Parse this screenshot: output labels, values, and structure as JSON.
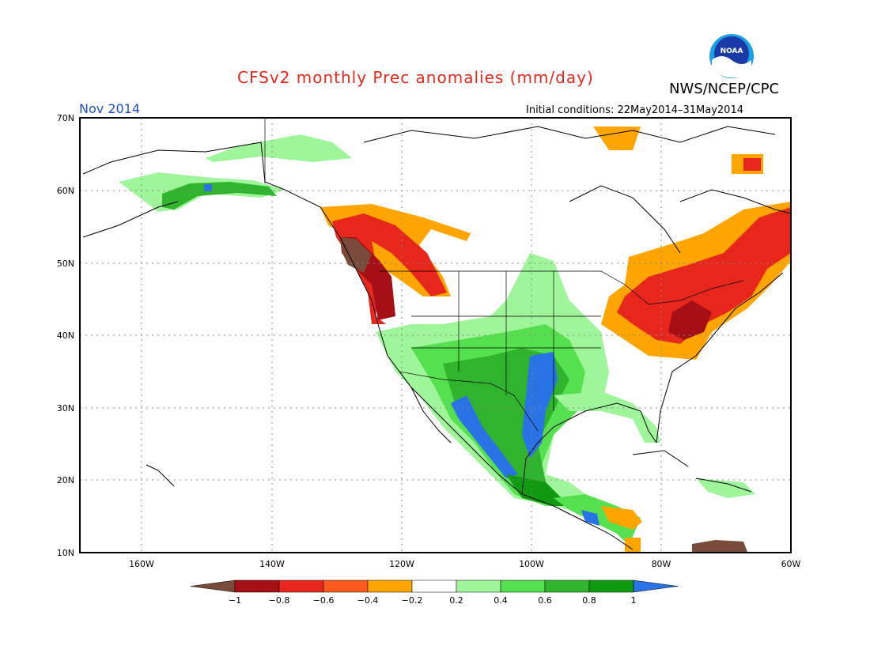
{
  "title": "CFSv2 monthly Prec anomalies (mm/day)",
  "agency": "NWS/NCEP/CPC",
  "period": "Nov 2014",
  "initial_conditions": "Initial conditions: 22May2014–31May2014",
  "logo_text": "NOAA",
  "lat_labels": [
    "70N",
    "60N",
    "50N",
    "40N",
    "30N",
    "20N",
    "10N"
  ],
  "lon_labels": [
    "160W",
    "140W",
    "120W",
    "100W",
    "80W",
    "60W"
  ],
  "colorbar": {
    "labels": [
      "−1",
      "−0.8",
      "−0.6",
      "−0.4",
      "−0.2",
      "0.2",
      "0.4",
      "0.6",
      "0.8",
      "1"
    ],
    "colors": {
      "below": "#7a4a3a",
      "bins": [
        "#a50f15",
        "#e8271c",
        "#fe5a1d",
        "#ffa500",
        "#ffffff",
        "#9ff59a",
        "#55e04f",
        "#30b42d",
        "#109a10"
      ],
      "above": "#2a73e6"
    }
  },
  "chart_data": {
    "type": "heatmap",
    "variable": "Prec anomalies",
    "units": "mm/day",
    "regions": [
      {
        "name": "Pacific Northwest coast",
        "anomaly": -1.0
      },
      {
        "name": "British Columbia / Alberta",
        "anomaly": -0.8
      },
      {
        "name": "Great Lakes / Northeast US",
        "anomaly": -0.6
      },
      {
        "name": "Eastern Canada / Labrador",
        "anomaly": -0.6
      },
      {
        "name": "Southern Plains / Texas",
        "anomaly": 1.0
      },
      {
        "name": "Western Mexico coast",
        "anomaly": 1.0
      },
      {
        "name": "Southwest US / Four Corners",
        "anomaly": 0.6
      },
      {
        "name": "Southern Alaska coast",
        "anomaly": 0.8
      },
      {
        "name": "Central Mexico",
        "anomaly": 0.8
      },
      {
        "name": "Florida / Gulf coast",
        "anomaly": 0.4
      }
    ]
  }
}
